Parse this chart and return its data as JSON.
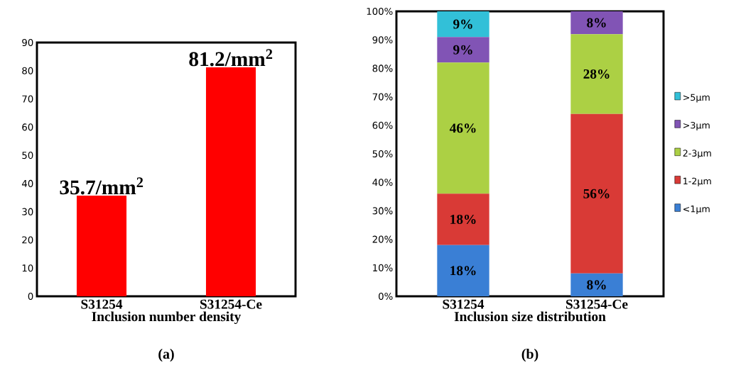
{
  "chart_data": [
    {
      "type": "bar",
      "categories": [
        "S31254",
        "S31254-Ce"
      ],
      "values": [
        35.7,
        81.2
      ],
      "color": "#ff0000",
      "value_labels": [
        "35.7/mm$^{2}$",
        "81.2/mm$^{2}$"
      ],
      "xlabel": "Inclusion number density",
      "ylim": [
        0,
        90
      ],
      "yticks": [
        0,
        10,
        20,
        30,
        40,
        50,
        60,
        70,
        80,
        90
      ],
      "annotations": [
        "(a)"
      ]
    },
    {
      "type": "bar",
      "stacked": true,
      "categories": [
        "S31254",
        "S31254-Ce"
      ],
      "xlabel": "Inclusion size distribution",
      "ylim": [
        0,
        100
      ],
      "legend": "right",
      "annotations": [
        "(b)"
      ],
      "yticks": [
        {
          "value": 0,
          "label": "0%"
        },
        {
          "value": 10,
          "label": "10%"
        },
        {
          "value": 20,
          "label": "20%"
        },
        {
          "value": 30,
          "label": "30%"
        },
        {
          "value": 40,
          "label": "40%"
        },
        {
          "value": 50,
          "label": "50%"
        },
        {
          "value": 60,
          "label": "60%"
        },
        {
          "value": 70,
          "label": "70%"
        },
        {
          "value": 80,
          "label": "80%"
        },
        {
          "value": 90,
          "label": "90%"
        },
        {
          "value": 100,
          "label": "100%"
        }
      ],
      "series": [
        {
          "name": "<1µm",
          "color": "#3a7fd5",
          "values": [
            18,
            8
          ],
          "value_labels": [
            "18%",
            "8%"
          ]
        },
        {
          "name": "1-2µm",
          "color": "#d93a36",
          "values": [
            18,
            56
          ],
          "value_labels": [
            "18%",
            "56%"
          ]
        },
        {
          "name": "2-3µm",
          "color": "#acd044",
          "values": [
            46,
            28
          ],
          "value_labels": [
            "46%",
            "28%"
          ]
        },
        {
          "name": ">3µm",
          "color": "#8154b5",
          "values": [
            9,
            8
          ],
          "value_labels": [
            "9%",
            "8%"
          ]
        },
        {
          "name": ">5µm",
          "color": "#32c0d8",
          "values": [
            9,
            0
          ],
          "value_labels": [
            "9%",
            null
          ]
        }
      ]
    }
  ]
}
